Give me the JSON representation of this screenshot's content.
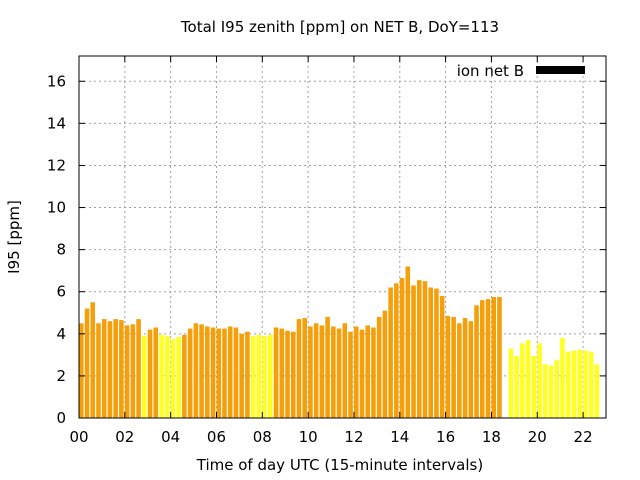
{
  "chart_data": {
    "type": "bar",
    "title": "Total I95 zenith [ppm] on NET B, DoY=113",
    "xlabel": "Time of day UTC (15-minute intervals)",
    "ylabel": "I95 [ppm]",
    "xlim": [
      0,
      23
    ],
    "ylim": [
      0,
      17.2
    ],
    "xticks": [
      "00",
      "02",
      "04",
      "06",
      "08",
      "10",
      "12",
      "14",
      "16",
      "18",
      "20",
      "22"
    ],
    "yticks": [
      "0",
      "2",
      "4",
      "6",
      "8",
      "10",
      "12",
      "14",
      "16"
    ],
    "grid": true,
    "legend": {
      "label": "ion net B",
      "position": "top-right",
      "swatch_color": "#000000"
    },
    "colors": {
      "orange": "#f5a00a",
      "yellow": "#ffff22"
    },
    "bar_width_hours": 0.2,
    "series": [
      {
        "interval_hours": 0.25,
        "values": [
          4.5,
          5.2,
          5.5,
          4.5,
          4.7,
          4.6,
          4.7,
          4.65,
          4.4,
          4.45,
          4.7,
          3.9,
          4.2,
          4.3,
          3.95,
          3.9,
          3.75,
          3.85,
          3.95,
          4.25,
          4.5,
          4.45,
          4.35,
          4.3,
          4.25,
          4.25,
          4.35,
          4.3,
          4.0,
          4.1,
          3.9,
          3.95,
          3.9,
          3.95,
          4.3,
          4.25,
          4.15,
          4.1,
          4.7,
          4.75,
          4.35,
          4.5,
          4.4,
          4.8,
          4.35,
          4.25,
          4.5,
          4.1,
          4.35,
          4.2,
          4.4,
          4.3,
          4.8,
          5.1,
          6.2,
          6.4,
          6.65,
          7.2,
          6.3,
          6.55,
          6.5,
          6.2,
          6.15,
          5.8,
          4.85,
          4.8,
          4.5,
          4.75,
          4.6,
          5.35,
          5.6,
          5.65,
          5.75,
          5.75,
          null,
          3.3,
          2.95,
          3.55,
          3.7,
          2.95,
          3.55,
          2.55,
          2.5,
          2.75,
          3.8,
          3.15,
          3.2,
          3.25,
          3.2,
          3.15,
          2.55
        ],
        "bar_colors": [
          "orange",
          "orange",
          "orange",
          "orange",
          "orange",
          "orange",
          "orange",
          "orange",
          "orange",
          "orange",
          "orange",
          "yellow",
          "orange",
          "orange",
          "yellow",
          "yellow",
          "yellow",
          "yellow",
          "orange",
          "orange",
          "orange",
          "orange",
          "orange",
          "orange",
          "orange",
          "orange",
          "orange",
          "orange",
          "orange",
          "orange",
          "yellow",
          "yellow",
          "yellow",
          "yellow",
          "orange",
          "orange",
          "orange",
          "orange",
          "orange",
          "orange",
          "orange",
          "orange",
          "orange",
          "orange",
          "orange",
          "orange",
          "orange",
          "orange",
          "orange",
          "orange",
          "orange",
          "orange",
          "orange",
          "orange",
          "orange",
          "orange",
          "orange",
          "orange",
          "orange",
          "orange",
          "orange",
          "orange",
          "orange",
          "orange",
          "orange",
          "orange",
          "orange",
          "orange",
          "orange",
          "orange",
          "orange",
          "orange",
          "orange",
          "orange",
          "yellow",
          "yellow",
          "yellow",
          "yellow",
          "yellow",
          "yellow",
          "yellow",
          "yellow",
          "yellow",
          "yellow",
          "yellow",
          "yellow",
          "yellow",
          "yellow",
          "yellow",
          "yellow",
          "yellow"
        ]
      }
    ]
  }
}
